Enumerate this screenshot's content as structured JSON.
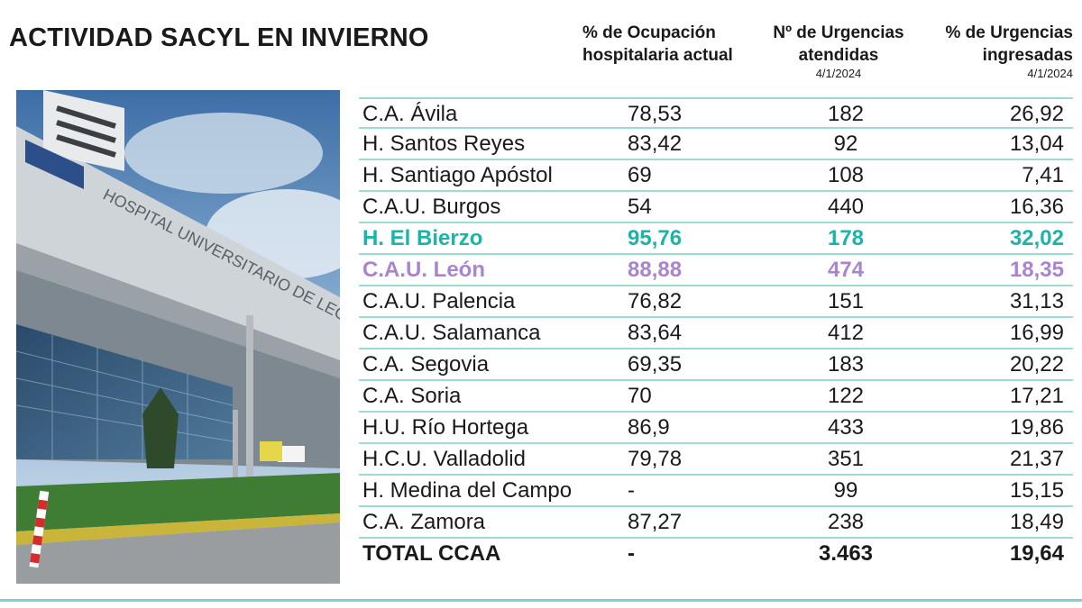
{
  "title": "ACTIVIDAD SACYL EN INVIERNO",
  "headers": {
    "occupancy": {
      "line1": "% de Ocupación",
      "line2": "hospitalaria actual"
    },
    "urgencias": {
      "line1": "Nº de Urgencias",
      "line2": "atendidas",
      "date": "4/1/2024"
    },
    "ingresadas": {
      "line1": "% de Urgencias",
      "line2": "ingresadas",
      "date": "4/1/2024"
    }
  },
  "photo": {
    "sign_text": "HOSPITAL UNIVERSITARIO DE LEÓN"
  },
  "rows": [
    {
      "name": "C.A. Ávila",
      "occupancy": "78,53",
      "urgencias": "182",
      "ingresadas": "26,92"
    },
    {
      "name": "H. Santos Reyes",
      "occupancy": "83,42",
      "urgencias": "92",
      "ingresadas": "13,04"
    },
    {
      "name": "H. Santiago Apóstol",
      "occupancy": "69",
      "urgencias": "108",
      "ingresadas": "7,41"
    },
    {
      "name": "C.A.U. Burgos",
      "occupancy": "54",
      "urgencias": "440",
      "ingresadas": "16,36"
    },
    {
      "name": "H. El Bierzo",
      "occupancy": "95,76",
      "urgencias": "178",
      "ingresadas": "32,02"
    },
    {
      "name": "C.A.U. León",
      "occupancy": "88,88",
      "urgencias": "474",
      "ingresadas": "18,35"
    },
    {
      "name": "C.A.U. Palencia",
      "occupancy": "76,82",
      "urgencias": "151",
      "ingresadas": "31,13"
    },
    {
      "name": "C.A.U. Salamanca",
      "occupancy": "83,64",
      "urgencias": "412",
      "ingresadas": "16,99"
    },
    {
      "name": "C.A. Segovia",
      "occupancy": "69,35",
      "urgencias": "183",
      "ingresadas": "20,22"
    },
    {
      "name": "C.A. Soria",
      "occupancy": "70",
      "urgencias": "122",
      "ingresadas": "17,21"
    },
    {
      "name": "H.U. Río Hortega",
      "occupancy": "86,9",
      "urgencias": "433",
      "ingresadas": "19,86"
    },
    {
      "name": "H.C.U. Valladolid",
      "occupancy": "79,78",
      "urgencias": "351",
      "ingresadas": "21,37"
    },
    {
      "name": "H. Medina del Campo",
      "occupancy": "-",
      "urgencias": "99",
      "ingresadas": "15,15"
    },
    {
      "name": "C.A. Zamora",
      "occupancy": "87,27",
      "urgencias": "238",
      "ingresadas": "18,49"
    }
  ],
  "total": {
    "name": "TOTAL CCAA",
    "occupancy": "-",
    "urgencias": "3.463",
    "ingresadas": "19,64"
  },
  "colors": {
    "accent_teal": "#1ab5a8",
    "accent_purple": "#a984cf",
    "rule": "#9edbd6"
  }
}
